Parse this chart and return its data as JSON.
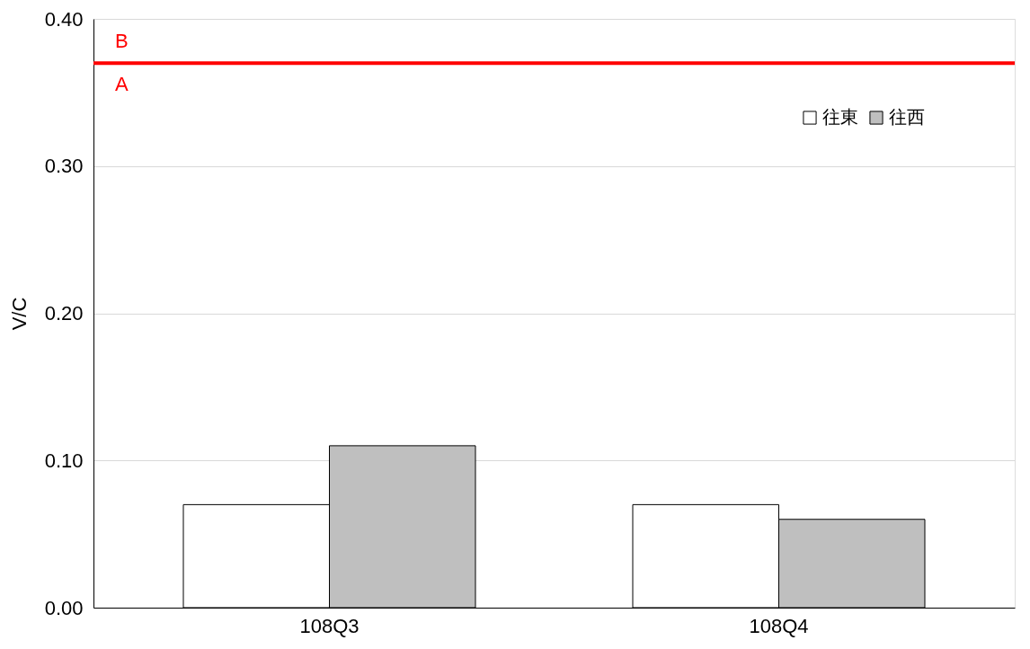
{
  "chart_data": {
    "type": "bar",
    "ylabel": "V/C",
    "categories": [
      "108Q3",
      "108Q4"
    ],
    "series": [
      {
        "name": "往東",
        "color": "#ffffff",
        "values": [
          0.07,
          0.07
        ]
      },
      {
        "name": "往西",
        "color": "#bfbfbf",
        "values": [
          0.11,
          0.06
        ]
      }
    ],
    "ylim": [
      0,
      0.4
    ],
    "yticks": [
      {
        "value": 0,
        "label": "0.00"
      },
      {
        "value": 0.1,
        "label": "0.10"
      },
      {
        "value": 0.2,
        "label": "0.20"
      },
      {
        "value": 0.3,
        "label": "0.30"
      },
      {
        "value": 0.4,
        "label": "0.40"
      }
    ],
    "ref_lines": [
      {
        "axis": "y",
        "value": 0.37,
        "color": "#ff0000"
      }
    ],
    "annotations": [
      "B",
      "A"
    ],
    "grid": "y",
    "legend": "top right"
  }
}
